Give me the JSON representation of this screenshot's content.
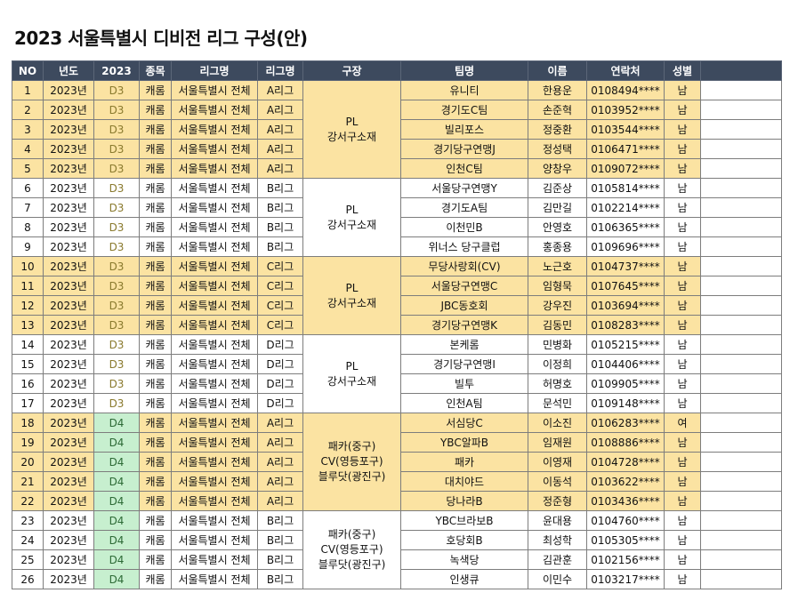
{
  "title": "2023 서울특별시 디비전 리그 구성(안)",
  "colors": {
    "header": "#3d4a5e",
    "odd_group": "#fbe3a2",
    "even_group": "#ffffff",
    "d4_cell": "#c7efcf"
  },
  "headers": [
    "NO",
    "년도",
    "2023",
    "종목",
    "리그명",
    "리그명",
    "구장",
    "팀명",
    "이름",
    "연락처",
    "성별",
    ""
  ],
  "groups": [
    {
      "venue": [
        "PL",
        "강서구소재"
      ],
      "rows": [
        {
          "no": "1",
          "year": "2023년",
          "division": "D3",
          "sport": "캐롬",
          "league_area": "서울특별시 전체",
          "league": "A리그",
          "team": "유니티",
          "name": "한용운",
          "phone": "0108494****",
          "gender": "남"
        },
        {
          "no": "2",
          "year": "2023년",
          "division": "D3",
          "sport": "캐롬",
          "league_area": "서울특별시 전체",
          "league": "A리그",
          "team": "경기도C팀",
          "name": "손준혁",
          "phone": "0103952****",
          "gender": "남"
        },
        {
          "no": "3",
          "year": "2023년",
          "division": "D3",
          "sport": "캐롬",
          "league_area": "서울특별시 전체",
          "league": "A리그",
          "team": "빌리포스",
          "name": "정중환",
          "phone": "0103544****",
          "gender": "남"
        },
        {
          "no": "4",
          "year": "2023년",
          "division": "D3",
          "sport": "캐롬",
          "league_area": "서울특별시 전체",
          "league": "A리그",
          "team": "경기당구연맹J",
          "name": "정성택",
          "phone": "0106471****",
          "gender": "남"
        },
        {
          "no": "5",
          "year": "2023년",
          "division": "D3",
          "sport": "캐롬",
          "league_area": "서울특별시 전체",
          "league": "A리그",
          "team": "인천C팀",
          "name": "양창우",
          "phone": "0109072****",
          "gender": "남"
        }
      ]
    },
    {
      "venue": [
        "PL",
        "강서구소재"
      ],
      "rows": [
        {
          "no": "6",
          "year": "2023년",
          "division": "D3",
          "sport": "캐롬",
          "league_area": "서울특별시 전체",
          "league": "B리그",
          "team": "서울당구연맹Y",
          "name": "김준상",
          "phone": "0105814****",
          "gender": "남"
        },
        {
          "no": "7",
          "year": "2023년",
          "division": "D3",
          "sport": "캐롬",
          "league_area": "서울특별시 전체",
          "league": "B리그",
          "team": "경기도A팀",
          "name": "김만길",
          "phone": "0102214****",
          "gender": "남"
        },
        {
          "no": "8",
          "year": "2023년",
          "division": "D3",
          "sport": "캐롬",
          "league_area": "서울특별시 전체",
          "league": "B리그",
          "team": "이천민B",
          "name": "안영호",
          "phone": "0106365****",
          "gender": "남"
        },
        {
          "no": "9",
          "year": "2023년",
          "division": "D3",
          "sport": "캐롬",
          "league_area": "서울특별시 전체",
          "league": "B리그",
          "team": "위너스 당구클럽",
          "name": "홍종용",
          "phone": "0109696****",
          "gender": "남"
        }
      ]
    },
    {
      "venue": [
        "PL",
        "강서구소재"
      ],
      "rows": [
        {
          "no": "10",
          "year": "2023년",
          "division": "D3",
          "sport": "캐롬",
          "league_area": "서울특별시 전체",
          "league": "C리그",
          "team": "무당사랑회(CV)",
          "name": "노근호",
          "phone": "0104737****",
          "gender": "남"
        },
        {
          "no": "11",
          "year": "2023년",
          "division": "D3",
          "sport": "캐롬",
          "league_area": "서울특별시 전체",
          "league": "C리그",
          "team": "서울당구연맹C",
          "name": "임형묵",
          "phone": "0107645****",
          "gender": "남"
        },
        {
          "no": "12",
          "year": "2023년",
          "division": "D3",
          "sport": "캐롬",
          "league_area": "서울특별시 전체",
          "league": "C리그",
          "team": "JBC동호회",
          "name": "강우진",
          "phone": "0103694****",
          "gender": "남"
        },
        {
          "no": "13",
          "year": "2023년",
          "division": "D3",
          "sport": "캐롬",
          "league_area": "서울특별시 전체",
          "league": "C리그",
          "team": "경기당구연맹K",
          "name": "김동민",
          "phone": "0108283****",
          "gender": "남"
        }
      ]
    },
    {
      "venue": [
        "PL",
        "강서구소재"
      ],
      "rows": [
        {
          "no": "14",
          "year": "2023년",
          "division": "D3",
          "sport": "캐롬",
          "league_area": "서울특별시 전체",
          "league": "D리그",
          "team": "본케롬",
          "name": "민병화",
          "phone": "0105215****",
          "gender": "남"
        },
        {
          "no": "15",
          "year": "2023년",
          "division": "D3",
          "sport": "캐롬",
          "league_area": "서울특별시 전체",
          "league": "D리그",
          "team": "경기당구연맹I",
          "name": "이정희",
          "phone": "0104406****",
          "gender": "남"
        },
        {
          "no": "16",
          "year": "2023년",
          "division": "D3",
          "sport": "캐롬",
          "league_area": "서울특별시 전체",
          "league": "D리그",
          "team": "빌투",
          "name": "허명호",
          "phone": "0109905****",
          "gender": "남"
        },
        {
          "no": "17",
          "year": "2023년",
          "division": "D3",
          "sport": "캐롬",
          "league_area": "서울특별시 전체",
          "league": "D리그",
          "team": "인천A팀",
          "name": "문석민",
          "phone": "0109148****",
          "gender": "남"
        }
      ]
    },
    {
      "venue": [
        "패카(중구)",
        "CV(영등포구)",
        "블루닷(광진구)"
      ],
      "rows": [
        {
          "no": "18",
          "year": "2023년",
          "division": "D4",
          "sport": "캐롬",
          "league_area": "서울특별시 전체",
          "league": "A리그",
          "team": "서심당C",
          "name": "이소진",
          "phone": "0106283****",
          "gender": "여"
        },
        {
          "no": "19",
          "year": "2023년",
          "division": "D4",
          "sport": "캐롬",
          "league_area": "서울특별시 전체",
          "league": "A리그",
          "team": "YBC알파B",
          "name": "임재원",
          "phone": "0108886****",
          "gender": "남"
        },
        {
          "no": "20",
          "year": "2023년",
          "division": "D4",
          "sport": "캐롬",
          "league_area": "서울특별시 전체",
          "league": "A리그",
          "team": "패카",
          "name": "이영재",
          "phone": "0104728****",
          "gender": "남"
        },
        {
          "no": "21",
          "year": "2023년",
          "division": "D4",
          "sport": "캐롬",
          "league_area": "서울특별시 전체",
          "league": "A리그",
          "team": "대치야드",
          "name": "이동석",
          "phone": "0103622****",
          "gender": "남"
        },
        {
          "no": "22",
          "year": "2023년",
          "division": "D4",
          "sport": "캐롬",
          "league_area": "서울특별시 전체",
          "league": "A리그",
          "team": "당나라B",
          "name": "정준형",
          "phone": "0103436****",
          "gender": "남"
        }
      ]
    },
    {
      "venue": [
        "패카(중구)",
        "CV(영등포구)",
        "블루닷(광진구)"
      ],
      "rows": [
        {
          "no": "23",
          "year": "2023년",
          "division": "D4",
          "sport": "캐롬",
          "league_area": "서울특별시 전체",
          "league": "B리그",
          "team": "YBC브라보B",
          "name": "윤대용",
          "phone": "0104760****",
          "gender": "남"
        },
        {
          "no": "24",
          "year": "2023년",
          "division": "D4",
          "sport": "캐롬",
          "league_area": "서울특별시 전체",
          "league": "B리그",
          "team": "호당회B",
          "name": "최성학",
          "phone": "0105305****",
          "gender": "남"
        },
        {
          "no": "25",
          "year": "2023년",
          "division": "D4",
          "sport": "캐롬",
          "league_area": "서울특별시 전체",
          "league": "B리그",
          "team": "녹색당",
          "name": "김관훈",
          "phone": "0102156****",
          "gender": "남"
        },
        {
          "no": "26",
          "year": "2023년",
          "division": "D4",
          "sport": "캐롬",
          "league_area": "서울특별시 전체",
          "league": "B리그",
          "team": "인생큐",
          "name": "이민수",
          "phone": "0103217****",
          "gender": "남"
        }
      ]
    }
  ]
}
